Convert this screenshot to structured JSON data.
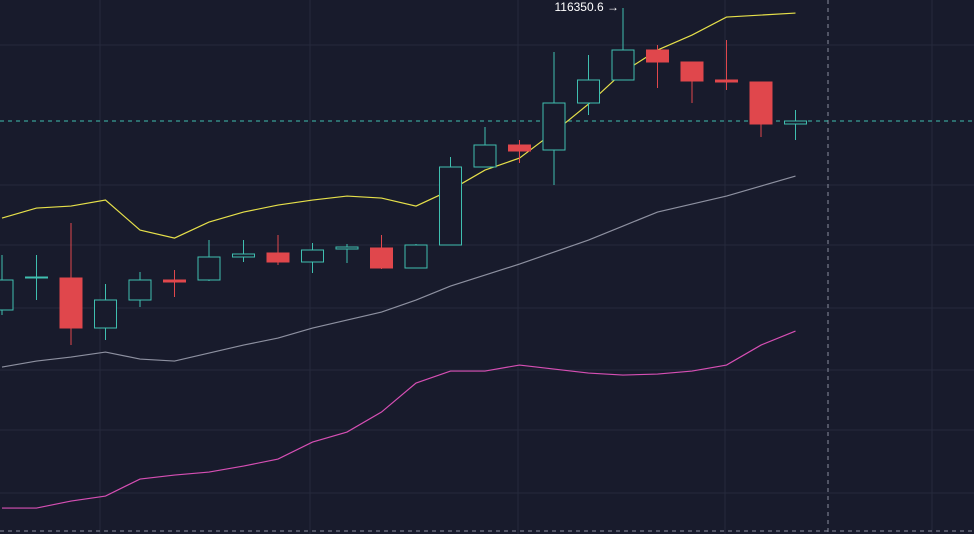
{
  "chart_data": {
    "type": "candlestick",
    "ylim": [
      111090.6,
      116430.6
    ],
    "up_color": "#3fbfb0",
    "down_color": "#e0474c",
    "open": [
      113330.6,
      113650.6,
      113650.6,
      113150.6,
      113430.6,
      113630.6,
      113630.6,
      113860.6,
      113900.6,
      113810.6,
      113940.6,
      113950.6,
      113750.6,
      113980.6,
      114760.6,
      114980.6,
      114930.6,
      115400.6,
      115630.6,
      115930.6,
      115810.6,
      115630.6,
      115610.6,
      115190.6
    ],
    "high": [
      113880.6,
      113880.6,
      114200.6,
      113590.6,
      113710.6,
      113730.6,
      114030.6,
      114030.6,
      114080.6,
      114000.6,
      113990.6,
      114080.6,
      113990.6,
      114860.6,
      115160.6,
      115030.6,
      115910.6,
      115880.6,
      116350.6,
      115980.6,
      115810.6,
      116030.6,
      115610.6,
      115330.6
    ],
    "low": [
      113280.6,
      113430.6,
      112980.6,
      113030.6,
      113360.6,
      113460.6,
      113620.6,
      113810.6,
      113780.6,
      113700.6,
      113800.6,
      113740.6,
      113750.6,
      113980.6,
      114760.6,
      114800.6,
      114580.6,
      115280.6,
      115630.6,
      115550.6,
      115400.6,
      115530.6,
      115060.6,
      115030.6
    ],
    "close": [
      113630.6,
      113660.6,
      113150.6,
      113430.6,
      113630.6,
      113610.6,
      113860.6,
      113890.6,
      113810.6,
      113930.6,
      113960.6,
      113750.6,
      113980.6,
      114760.6,
      114980.6,
      114920.6,
      115400.6,
      115630.6,
      115930.6,
      115810.6,
      115620.6,
      115610.6,
      115190.6,
      115220.6
    ],
    "max_label": "116350.6 →",
    "series": [
      {
        "color": "#e6e04a",
        "values": [
          114250,
          114350,
          114370,
          114430,
          114130,
          114050,
          114210,
          114310,
          114380,
          114430,
          114470,
          114450,
          114370,
          114530,
          114730,
          114850,
          115110,
          115390,
          115710,
          115930,
          116080,
          116260,
          116280,
          116300
        ]
      },
      {
        "color": "#8d90a0",
        "values": [
          112760,
          112820,
          112860,
          112910,
          112840,
          112820,
          112900,
          112980,
          113050,
          113150,
          113230,
          113310,
          113430,
          113570,
          113680,
          113790,
          113910,
          114030,
          114170,
          114310,
          114390,
          114470,
          114570,
          114670
        ]
      },
      {
        "color": "#d64fb4",
        "values": [
          111350,
          111350,
          111420,
          111470,
          111640,
          111680,
          111710,
          111770,
          111840,
          112010,
          112110,
          112310,
          112600,
          112720,
          112720,
          112780,
          112740,
          112700,
          112680,
          112690,
          112720,
          112780,
          112980,
          113120
        ]
      }
    ]
  }
}
